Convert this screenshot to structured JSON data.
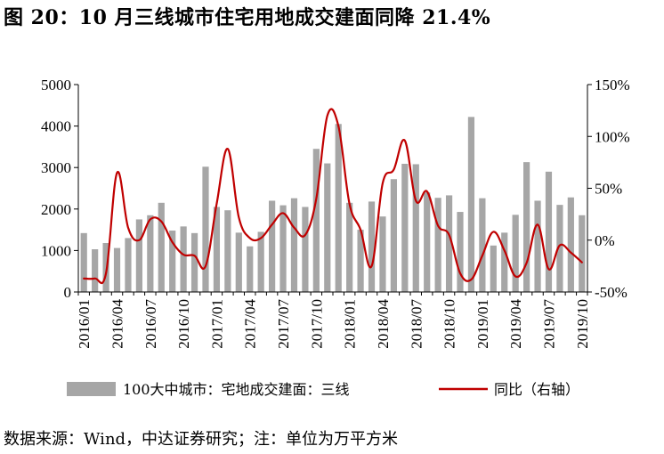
{
  "title": "图 20：10 月三线城市住宅用地成交建面同降 21.4%",
  "source": "数据来源：Wind，中达证券研究；注：单位为万平方米",
  "colors": {
    "bar": "#a6a6a6",
    "line": "#c00000",
    "axis": "#000000"
  },
  "chart_data": {
    "type": "bar+line",
    "categories": [
      "2016/01",
      "2016/02",
      "2016/03",
      "2016/04",
      "2016/05",
      "2016/06",
      "2016/07",
      "2016/08",
      "2016/09",
      "2016/10",
      "2016/11",
      "2016/12",
      "2017/01",
      "2017/02",
      "2017/03",
      "2017/04",
      "2017/05",
      "2017/06",
      "2017/07",
      "2017/08",
      "2017/09",
      "2017/10",
      "2017/11",
      "2017/12",
      "2018/01",
      "2018/02",
      "2018/03",
      "2018/04",
      "2018/05",
      "2018/06",
      "2018/07",
      "2018/08",
      "2018/09",
      "2018/10",
      "2018/11",
      "2018/12",
      "2019/01",
      "2019/02",
      "2019/03",
      "2019/04",
      "2019/05",
      "2019/06",
      "2019/07",
      "2019/08",
      "2019/09",
      "2019/10"
    ],
    "x_tick_labels": [
      "2016/01",
      "2016/04",
      "2016/07",
      "2016/10",
      "2017/01",
      "2017/04",
      "2017/07",
      "2017/10",
      "2018/01",
      "2018/04",
      "2018/07",
      "2018/10",
      "2019/01",
      "2019/04",
      "2019/07",
      "2019/10"
    ],
    "series": [
      {
        "name": "100大中城市：宅地成交建面：三线",
        "type": "bar",
        "axis": "left",
        "values": [
          1420,
          1030,
          1180,
          1060,
          1300,
          1750,
          1850,
          2150,
          1480,
          1580,
          1420,
          3020,
          2050,
          1970,
          1430,
          1100,
          1450,
          2200,
          2090,
          2260,
          2050,
          3450,
          3100,
          4050,
          2150,
          1500,
          2180,
          1820,
          2720,
          3090,
          3080,
          2400,
          2270,
          2330,
          1930,
          4220,
          2260,
          1120,
          1430,
          1860,
          3130,
          2200,
          2900,
          2100,
          2280,
          1850
        ]
      },
      {
        "name": "同比（右轴）",
        "type": "line",
        "axis": "right",
        "values": [
          -37,
          -37,
          -32,
          65,
          12,
          0,
          20,
          18,
          -2,
          -14,
          -15,
          -25,
          35,
          88,
          22,
          2,
          2,
          15,
          26,
          12,
          5,
          40,
          120,
          110,
          35,
          10,
          -25,
          55,
          68,
          96,
          38,
          47,
          14,
          5,
          -32,
          -38,
          -15,
          8,
          -10,
          -35,
          -22,
          15,
          -28,
          -5,
          -12,
          -21.4
        ]
      }
    ],
    "y_left": {
      "min": 0,
      "max": 5000,
      "ticks": [
        "0",
        "1000",
        "2000",
        "3000",
        "4000",
        "5000"
      ]
    },
    "y_right": {
      "min": -50,
      "max": 150,
      "ticks": [
        "-50%",
        "0%",
        "50%",
        "100%",
        "150%"
      ]
    },
    "grid": false,
    "legend": {
      "position": "bottom"
    }
  }
}
